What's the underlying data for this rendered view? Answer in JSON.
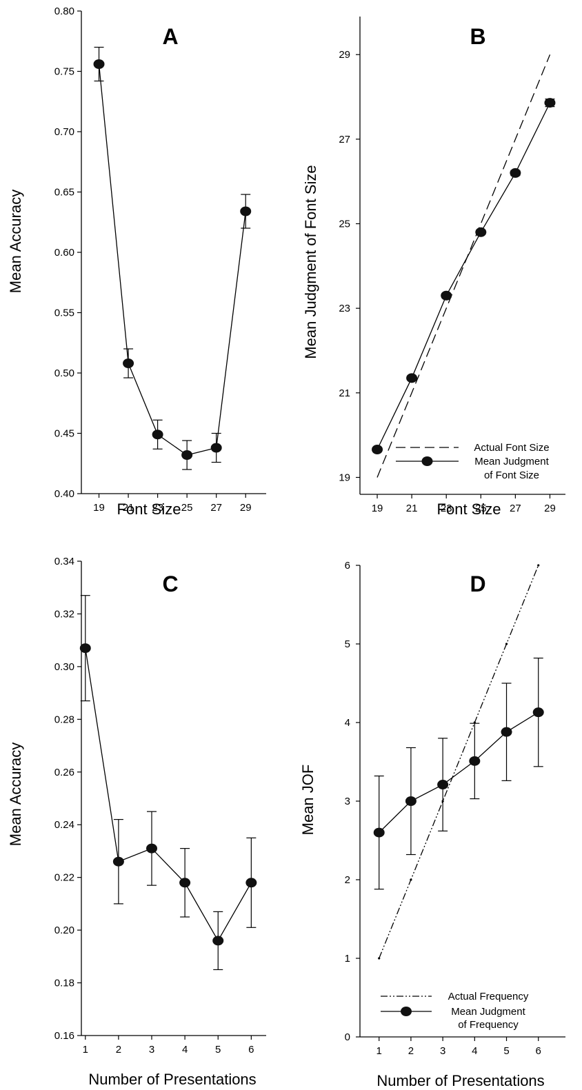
{
  "chart_data": [
    {
      "panel": "A",
      "type": "line",
      "xlabel": "Font Size",
      "ylabel": "Mean Accuracy",
      "xlim": [
        17.8,
        30.4
      ],
      "ylim": [
        0.4,
        0.8
      ],
      "xticks": [
        19,
        21,
        23,
        25,
        27,
        29
      ],
      "yticks": [
        0.4,
        0.45,
        0.5,
        0.55,
        0.6,
        0.65,
        0.7,
        0.75,
        0.8
      ],
      "ytick_labels": [
        "0.40",
        "0.45",
        "0.50",
        "0.55",
        "0.60",
        "0.65",
        "0.70",
        "0.75",
        "0.80"
      ],
      "series": [
        {
          "x": [
            19,
            21,
            23,
            25,
            27,
            29
          ],
          "values": [
            0.756,
            0.508,
            0.449,
            0.432,
            0.438,
            0.634
          ],
          "error": [
            0.014,
            0.012,
            0.012,
            0.012,
            0.012,
            0.014
          ]
        }
      ]
    },
    {
      "panel": "B",
      "type": "line",
      "xlabel": "Font Size",
      "ylabel": "Mean Judgment of Font Size",
      "xlim": [
        18.0,
        29.9
      ],
      "ylim": [
        18.6,
        29.9
      ],
      "xticks": [
        19,
        21,
        23,
        25,
        27,
        29
      ],
      "yticks": [
        19,
        21,
        23,
        25,
        27,
        29
      ],
      "ytick_labels": [
        "19",
        "21",
        "23",
        "25",
        "27",
        "29"
      ],
      "legend": {
        "position": "bottom-right",
        "entries": [
          "Actual Font Size",
          "Mean Judgment",
          "of Font Size"
        ]
      },
      "series": [
        {
          "name": "Actual Font Size",
          "style": "dashed",
          "x": [
            19,
            29
          ],
          "values": [
            19,
            29
          ]
        },
        {
          "name": "Mean Judgment of Font Size",
          "x": [
            19,
            21,
            23,
            25,
            27,
            29
          ],
          "values": [
            19.66,
            21.35,
            23.3,
            24.8,
            26.2,
            27.86
          ],
          "error": [
            0.05,
            0.05,
            0.05,
            0.05,
            0.06,
            0.09
          ]
        }
      ]
    },
    {
      "panel": "C",
      "type": "line",
      "xlabel": "Number of Presentations",
      "ylabel": "Mean Accuracy",
      "xlim": [
        0.88,
        6.45
      ],
      "ylim": [
        0.16,
        0.34
      ],
      "xticks": [
        1,
        2,
        3,
        4,
        5,
        6
      ],
      "yticks": [
        0.16,
        0.18,
        0.2,
        0.22,
        0.24,
        0.26,
        0.28,
        0.3,
        0.32,
        0.34
      ],
      "ytick_labels": [
        "0.16",
        "0.18",
        "0.20",
        "0.22",
        "0.24",
        "0.26",
        "0.28",
        "0.30",
        "0.32",
        "0.34"
      ],
      "series": [
        {
          "x": [
            1,
            2,
            3,
            4,
            5,
            6
          ],
          "values": [
            0.307,
            0.226,
            0.231,
            0.218,
            0.196,
            0.218
          ],
          "error": [
            0.02,
            0.016,
            0.014,
            0.013,
            0.011,
            0.017
          ]
        }
      ]
    },
    {
      "panel": "D",
      "type": "line",
      "xlabel": "Number of Presentations",
      "ylabel": "Mean JOF",
      "xlim": [
        0.4,
        6.85
      ],
      "ylim": [
        0,
        6
      ],
      "xticks": [
        1,
        2,
        3,
        4,
        5,
        6
      ],
      "yticks": [
        0,
        1,
        2,
        3,
        4,
        5,
        6
      ],
      "ytick_labels": [
        "0",
        "1",
        "2",
        "3",
        "4",
        "5",
        "6"
      ],
      "legend": {
        "position": "bottom-right",
        "entries": [
          "Actual Frequency",
          "Mean Judgment",
          "of Frequency"
        ]
      },
      "series": [
        {
          "name": "Actual Frequency",
          "style": "dash-dot-dot",
          "x": [
            1,
            2,
            3,
            4,
            5,
            6
          ],
          "values": [
            1,
            2,
            3,
            4,
            5,
            6
          ]
        },
        {
          "name": "Mean Judgment of Frequency",
          "x": [
            1,
            2,
            3,
            4,
            5,
            6
          ],
          "values": [
            2.6,
            3.0,
            3.21,
            3.51,
            3.88,
            4.13
          ],
          "error": [
            0.72,
            0.68,
            0.59,
            0.48,
            0.62,
            0.69
          ]
        }
      ]
    }
  ]
}
